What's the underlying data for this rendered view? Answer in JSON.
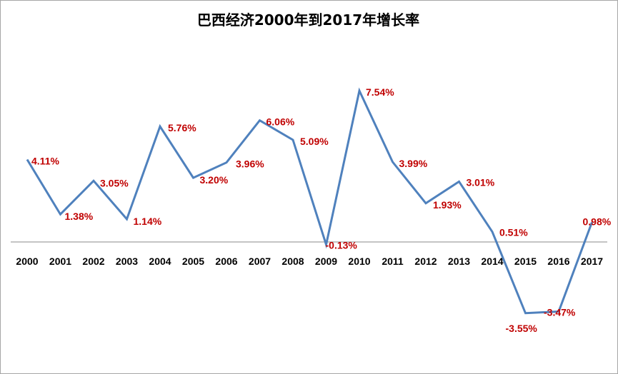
{
  "chart_data": {
    "type": "line",
    "title": "巴西经济2000年到2017年增长率",
    "xlabel": "",
    "ylabel": "",
    "categories": [
      "2000",
      "2001",
      "2002",
      "2003",
      "2004",
      "2005",
      "2006",
      "2007",
      "2008",
      "2009",
      "2010",
      "2011",
      "2012",
      "2013",
      "2014",
      "2015",
      "2016",
      "2017"
    ],
    "series": [
      {
        "values": [
          4.11,
          1.38,
          3.05,
          1.14,
          5.76,
          3.2,
          3.96,
          6.06,
          5.09,
          -0.13,
          7.54,
          3.99,
          1.93,
          3.01,
          0.51,
          -3.55,
          -3.47,
          0.98
        ],
        "labels": [
          "4.11%",
          "1.38%",
          "3.05%",
          "1.14%",
          "5.76%",
          "3.20%",
          "3.96%",
          "6.06%",
          "5.09%",
          "-0.13%",
          "7.54%",
          "3.99%",
          "1.93%",
          "3.01%",
          "0.51%",
          "-3.55%",
          "-3.47%",
          "0.98%"
        ]
      }
    ],
    "ylim": [
      -5,
      10
    ],
    "grid": false,
    "legend": "none",
    "colors": {
      "line": "#4f81bd",
      "label": "#c00000",
      "axis": "#888888"
    }
  }
}
